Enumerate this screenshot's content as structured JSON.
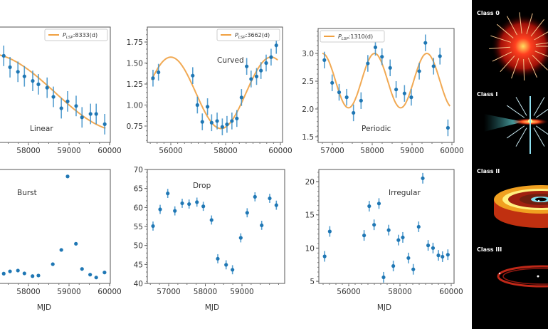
{
  "chart_data": [
    {
      "type": "scatter",
      "label": "Linear",
      "xlabel": "",
      "x_ticks": [
        58000,
        59000,
        60000
      ],
      "y_ticks": [],
      "ylim": [
        0,
        10
      ],
      "legend": {
        "symbol": "P",
        "sub": "LSP",
        "text": ":8333(d)",
        "position": "top-right"
      },
      "fit": {
        "kind": "sinusoid",
        "period_d": 8333,
        "color": "#f0a040"
      },
      "error": 0.9,
      "x": [
        57390,
        57545,
        57740,
        57900,
        58105,
        58245,
        58460,
        58615,
        58810,
        58965,
        59175,
        59320,
        59530,
        59670,
        59880
      ],
      "y": [
        7.6,
        6.6,
        6.2,
        5.8,
        5.4,
        5.1,
        4.8,
        4.0,
        3.0,
        3.6,
        3.2,
        2.2,
        2.5,
        2.5,
        1.6
      ]
    },
    {
      "type": "scatter",
      "label": "Curved",
      "xlabel": "",
      "x_ticks": [
        56000,
        58000,
        60000
      ],
      "y_ticks": [
        "0.75",
        "1.00",
        "1.25",
        "1.50",
        "1.75"
      ],
      "legend": {
        "symbol": "P",
        "sub": "LSP",
        "text": ":3662(d)",
        "position": "top-right"
      },
      "fit": {
        "kind": "sinusoid",
        "period_d": 3662,
        "mean": 1.145,
        "amplitude": 0.425,
        "peak_mjd": 56000,
        "color": "#f0a040"
      },
      "error": 0.1,
      "x": [
        55350,
        55550,
        56800,
        56970,
        57150,
        57340,
        57490,
        57690,
        57880,
        58050,
        58230,
        58410,
        58580,
        58770,
        58930,
        59130,
        59290,
        59480,
        59660,
        59850
      ],
      "y": [
        1.32,
        1.39,
        1.35,
        1.0,
        0.8,
        0.98,
        0.79,
        0.81,
        0.74,
        0.77,
        0.81,
        0.84,
        1.09,
        1.46,
        1.31,
        1.34,
        1.41,
        1.5,
        1.57,
        1.71
      ]
    },
    {
      "type": "scatter",
      "label": "Periodic",
      "xlabel": "",
      "x_ticks": [
        57000,
        58000,
        59000,
        60000
      ],
      "y_ticks": [
        "1.5",
        "2.0",
        "2.5",
        "3.0"
      ],
      "legend": {
        "symbol": "P",
        "sub": "LSP",
        "text": ":1310(d)",
        "position": "top-left"
      },
      "fit": {
        "kind": "sinusoid",
        "period_d": 1310,
        "mean": 2.51,
        "amplitude": 0.49,
        "peak_mjd": 58060,
        "color": "#f0a040"
      },
      "error": 0.15,
      "x": [
        56800,
        56995,
        57170,
        57360,
        57530,
        57720,
        57890,
        58080,
        58245,
        58450,
        58600,
        58810,
        58980,
        59180,
        59335,
        59540,
        59700,
        59900
      ],
      "y": [
        2.88,
        2.47,
        2.3,
        2.21,
        1.93,
        2.15,
        2.82,
        3.11,
        2.94,
        2.74,
        2.35,
        2.28,
        2.21,
        2.68,
        3.19,
        2.77,
        2.95,
        1.66
      ]
    },
    {
      "type": "scatter",
      "label": "Burst",
      "xlabel": "MJD",
      "x_ticks": [
        58000,
        59000,
        60000
      ],
      "y_ticks": [],
      "ylim": [
        0,
        10
      ],
      "error": 0,
      "x": [
        57390,
        57545,
        57740,
        57900,
        58100,
        58245,
        58600,
        58810,
        58965,
        59170,
        59320,
        59520,
        59670,
        59875
      ],
      "y": [
        0.86,
        1.06,
        1.13,
        0.88,
        0.64,
        0.69,
        1.69,
        2.94,
        9.39,
        3.48,
        1.27,
        0.77,
        0.52,
        0.96
      ]
    },
    {
      "type": "scatter",
      "label": "Drop",
      "xlabel": "MJD",
      "x_ticks": [
        57000,
        58000,
        59000
      ],
      "y_ticks": [
        "40",
        "45",
        "50",
        "55",
        "60",
        "65",
        "70"
      ],
      "ylim": [
        40,
        70
      ],
      "error": 1.2,
      "x": [
        56573,
        56767,
        56975,
        57169,
        57369,
        57557,
        57771,
        57945,
        58170,
        58340,
        58567,
        58741,
        58967,
        59142,
        59355,
        59538,
        59757,
        59938
      ],
      "y": [
        55.1,
        59.5,
        63.7,
        59.1,
        61.1,
        60.9,
        61.4,
        60.3,
        56.7,
        46.5,
        44.9,
        43.6,
        52.0,
        58.6,
        62.8,
        55.3,
        62.4,
        60.6
      ]
    },
    {
      "type": "scatter",
      "label": "Irregular",
      "xlabel": "MJD",
      "x_ticks": [
        56000,
        58000,
        60000
      ],
      "y_ticks": [
        "5",
        "10",
        "15",
        "20"
      ],
      "error": 0.8,
      "x": [
        55060,
        55260,
        56600,
        56800,
        56990,
        57180,
        57360,
        57560,
        57740,
        57940,
        58110,
        58330,
        58520,
        58730,
        58890,
        59100,
        59290,
        59500,
        59660,
        59870
      ],
      "y": [
        8.75,
        12.5,
        11.9,
        16.3,
        13.5,
        16.7,
        5.6,
        12.7,
        7.3,
        11.2,
        11.6,
        8.5,
        6.8,
        13.2,
        20.5,
        10.4,
        10.0,
        8.9,
        8.7,
        9.0
      ]
    }
  ],
  "point_color": "#1f77b4",
  "errorbar_color": "#3a8fc8",
  "fit_color": "#f0a040",
  "illustration": {
    "background": "#000000",
    "classes": [
      "Class 0",
      "Class I",
      "Class II",
      "Class III"
    ]
  }
}
